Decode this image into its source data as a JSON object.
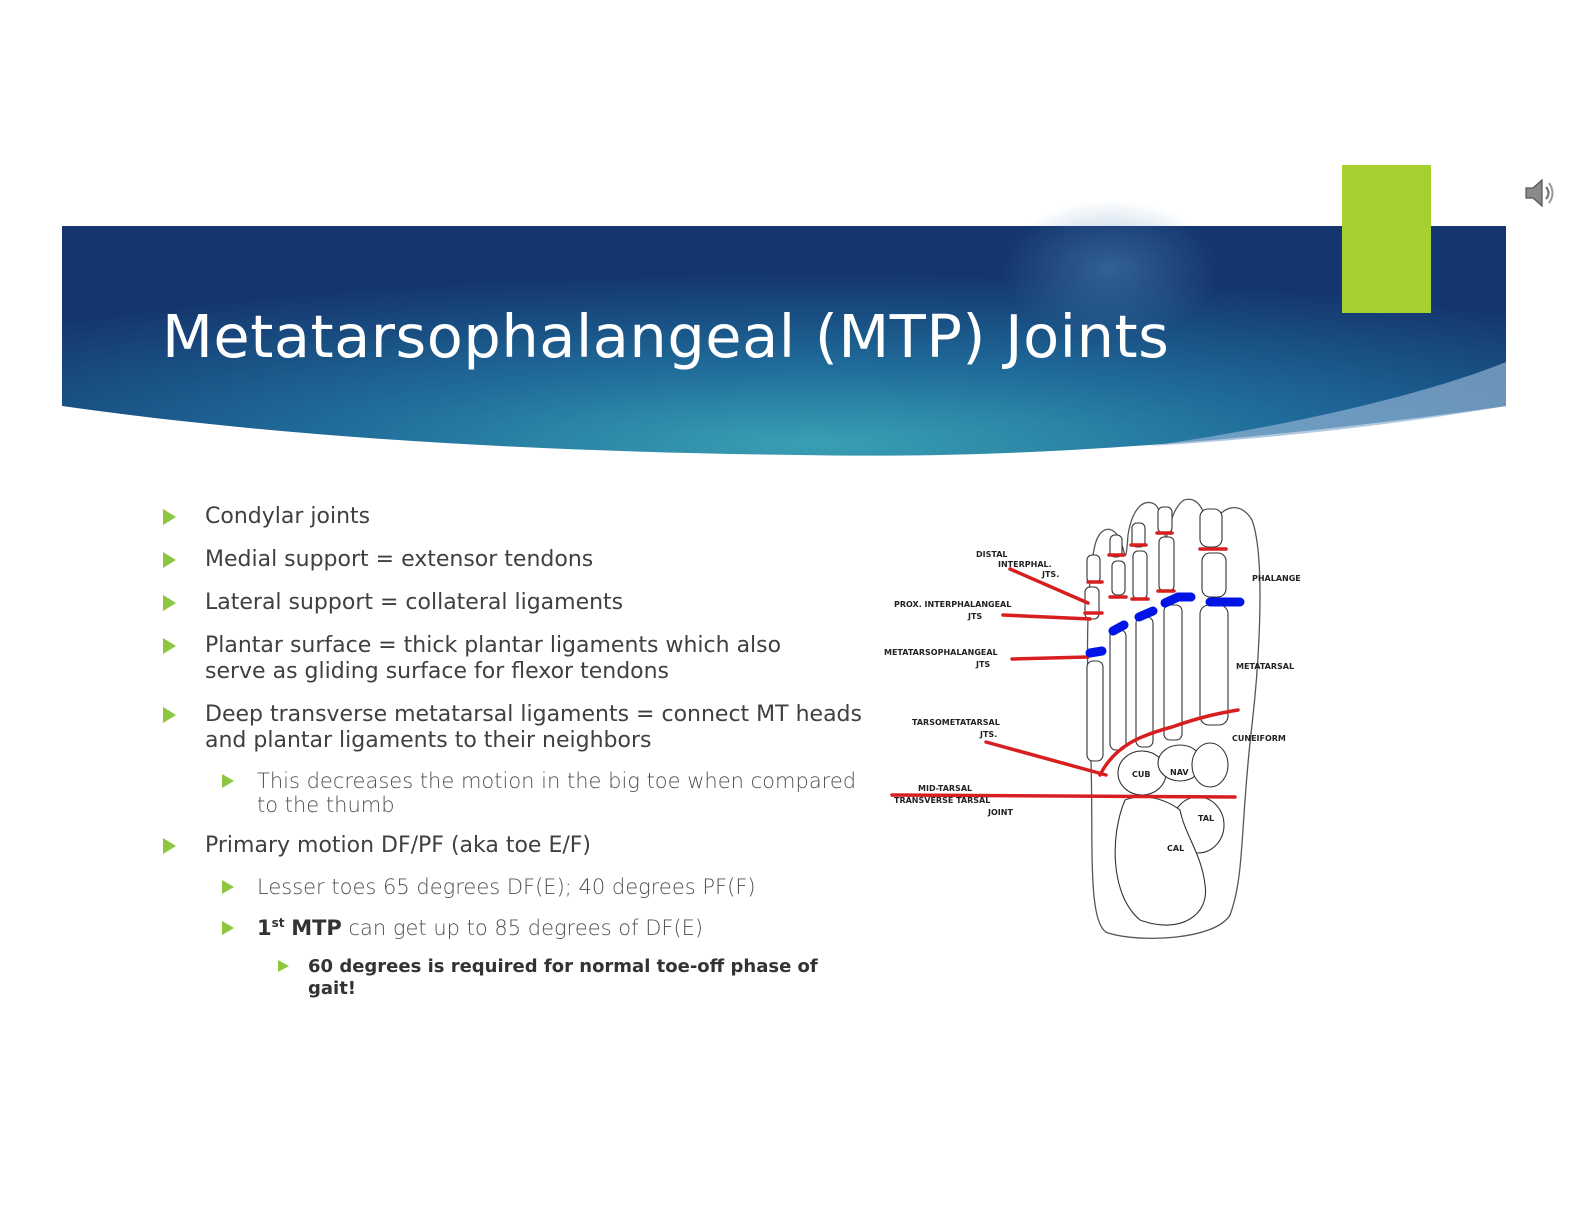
{
  "slide": {
    "title": "Metatarsophalangeal (MTP) Joints",
    "colors": {
      "banner_dark": "#14356e",
      "banner_mid": "#1f5f93",
      "banner_light": "#3592ad",
      "accent_green": "#a5d02f",
      "bullet_arrow": "#8dc63f",
      "joint_red": "#d81f1f",
      "joint_blue": "#0014e6"
    },
    "icons": {
      "speaker": "speaker-icon",
      "bullet": "triangle-right-icon"
    }
  },
  "bullets": [
    {
      "level": 1,
      "text": "Condylar joints"
    },
    {
      "level": 1,
      "text": "Medial support = extensor tendons"
    },
    {
      "level": 1,
      "text": "Lateral support = collateral ligaments"
    },
    {
      "level": 1,
      "text": "Plantar surface = thick plantar ligaments which also serve as gliding surface for flexor tendons"
    },
    {
      "level": 1,
      "text": "Deep transverse metatarsal ligaments = connect MT heads and plantar ligaments to their neighbors"
    },
    {
      "level": 2,
      "text": "This decreases the motion in the big toe when compared to the thumb"
    },
    {
      "level": 1,
      "text": "Primary motion DF/PF (aka toe E/F)"
    },
    {
      "level": 2,
      "text": "Lesser toes 65 degrees DF(E); 40 degrees PF(F)"
    },
    {
      "level": 2,
      "text_parts": {
        "ordinal": "1",
        "ordinal_suffix": "st",
        "term": "MTP",
        "rest": " can get up to 85 degrees of DF(E)"
      }
    },
    {
      "level": 3,
      "text": "60 degrees is required for normal toe-off phase of gait!"
    }
  ],
  "figure": {
    "labels": {
      "distal": "DISTAL",
      "interphal": "INTERPHAL.",
      "jts1": "JTS.",
      "prox": "PROX. INTERPHALANGEAL",
      "jts2": "JTS",
      "mtp": "METATARSOPHALANGEAL",
      "jts3": "JTS",
      "tarso": "TARSOMETATARSAL",
      "jts4": "JTS.",
      "midtarsal": "MID-TARSAL",
      "transverse": "TRANSVERSE TARSAL",
      "joint": "JOINT",
      "phalange": "PHALANGE",
      "metatarsal": "METATARSAL",
      "cuneiform": "CUNEIFORM",
      "cub": "CUB",
      "nav": "NAV",
      "tal": "TAL",
      "cal": "CAL"
    }
  }
}
